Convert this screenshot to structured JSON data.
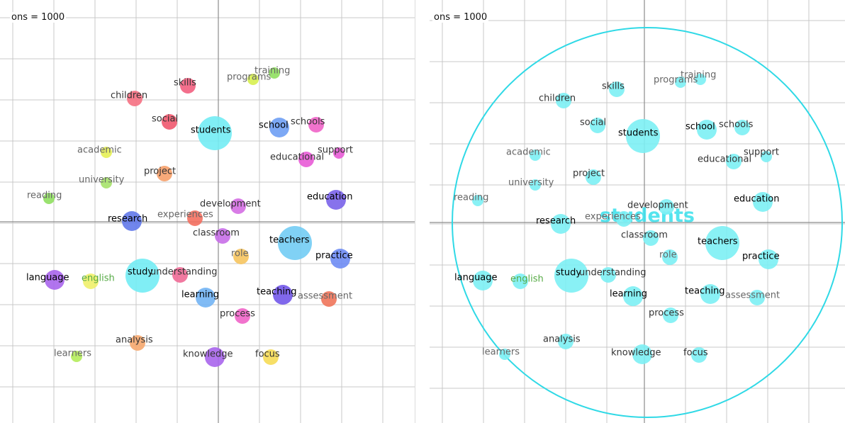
{
  "panels": [
    {
      "id": "left",
      "header": "ons = 1000",
      "palette_mode": "colored",
      "words": [
        {
          "label": "training",
          "color": "#8fdf5f",
          "size": "s",
          "text": "gray"
        },
        {
          "label": "programs",
          "color": "#d7ef4f",
          "size": "s",
          "text": "gray"
        },
        {
          "label": "skills",
          "color": "#f25f7f",
          "size": "m",
          "text": "dark"
        },
        {
          "label": "children",
          "color": "#f57082",
          "size": "m",
          "text": "dark"
        },
        {
          "label": "social",
          "color": "#f0586e",
          "size": "m",
          "text": "dark"
        },
        {
          "label": "students",
          "color": "#72ecf4",
          "size": "xl",
          "text": "black"
        },
        {
          "label": "school",
          "color": "#6e9ef4",
          "size": "l",
          "text": "black"
        },
        {
          "label": "schools",
          "color": "#f064c8",
          "size": "m",
          "text": "dark"
        },
        {
          "label": "academic",
          "color": "#e6ef55",
          "size": "s",
          "text": "gray"
        },
        {
          "label": "educational",
          "color": "#e85bd6",
          "size": "m",
          "text": "dark"
        },
        {
          "label": "support",
          "color": "#e85bd6",
          "size": "s",
          "text": "dark"
        },
        {
          "label": "project",
          "color": "#f6a06a",
          "size": "m",
          "text": "dark"
        },
        {
          "label": "university",
          "color": "#a6e26a",
          "size": "s",
          "text": "gray"
        },
        {
          "label": "reading",
          "color": "#8fdf5f",
          "size": "s",
          "text": "gray"
        },
        {
          "label": "development",
          "color": "#d46ee3",
          "size": "m",
          "text": "dark"
        },
        {
          "label": "education",
          "color": "#7a63ea",
          "size": "l",
          "text": "black"
        },
        {
          "label": "research",
          "color": "#6279ea",
          "size": "l",
          "text": "black"
        },
        {
          "label": "experiences",
          "color": "#f47060",
          "size": "m",
          "text": "gray"
        },
        {
          "label": "classroom",
          "color": "#c86ee8",
          "size": "m",
          "text": "dark"
        },
        {
          "label": "teachers",
          "color": "#72ccf4",
          "size": "xl",
          "text": "black"
        },
        {
          "label": "role",
          "color": "#f6c45e",
          "size": "m",
          "text": "gray"
        },
        {
          "label": "practice",
          "color": "#6e8cf4",
          "size": "l",
          "text": "black"
        },
        {
          "label": "study",
          "color": "#72ecf4",
          "size": "xl",
          "text": "black"
        },
        {
          "label": "understanding",
          "color": "#f06a96",
          "size": "m",
          "text": "dark"
        },
        {
          "label": "language",
          "color": "#a865ec",
          "size": "l",
          "text": "black"
        },
        {
          "label": "english",
          "color": "#f0f06a",
          "size": "m",
          "text": "green"
        },
        {
          "label": "learning",
          "color": "#72b4f4",
          "size": "l",
          "text": "black"
        },
        {
          "label": "teaching",
          "color": "#7258ea",
          "size": "l",
          "text": "black"
        },
        {
          "label": "assessment",
          "color": "#f0745a",
          "size": "m",
          "text": "gray"
        },
        {
          "label": "process",
          "color": "#f064c8",
          "size": "m",
          "text": "dark"
        },
        {
          "label": "analysis",
          "color": "#f6a76e",
          "size": "m",
          "text": "dark"
        },
        {
          "label": "learners",
          "color": "#b4ec5a",
          "size": "s",
          "text": "gray"
        },
        {
          "label": "knowledge",
          "color": "#a865ec",
          "size": "l",
          "text": "dark"
        },
        {
          "label": "focus",
          "color": "#f6dc55",
          "size": "m",
          "text": "dark"
        }
      ]
    },
    {
      "id": "right",
      "header": "ons = 1000",
      "palette_mode": "cyan",
      "highlight": {
        "label": "students",
        "color": "#38e0ec"
      },
      "words": [
        {
          "label": "training",
          "color": "#7cf0f4",
          "size": "s",
          "text": "gray"
        },
        {
          "label": "programs",
          "color": "#7cf0f4",
          "size": "s",
          "text": "gray"
        },
        {
          "label": "skills",
          "color": "#7cf0f4",
          "size": "m",
          "text": "dark"
        },
        {
          "label": "children",
          "color": "#7cf0f4",
          "size": "m",
          "text": "dark"
        },
        {
          "label": "social",
          "color": "#7cf0f4",
          "size": "m",
          "text": "dark"
        },
        {
          "label": "students",
          "color": "#7cf0f4",
          "size": "xl",
          "text": "black"
        },
        {
          "label": "school",
          "color": "#7cf0f4",
          "size": "l",
          "text": "black"
        },
        {
          "label": "schools",
          "color": "#7cf0f4",
          "size": "m",
          "text": "dark"
        },
        {
          "label": "academic",
          "color": "#7cf0f4",
          "size": "s",
          "text": "gray"
        },
        {
          "label": "educational",
          "color": "#7cf0f4",
          "size": "m",
          "text": "dark"
        },
        {
          "label": "support",
          "color": "#7cf0f4",
          "size": "s",
          "text": "dark"
        },
        {
          "label": "project",
          "color": "#7cf0f4",
          "size": "m",
          "text": "dark"
        },
        {
          "label": "university",
          "color": "#7cf0f4",
          "size": "s",
          "text": "gray"
        },
        {
          "label": "reading",
          "color": "#7cf0f4",
          "size": "s",
          "text": "gray"
        },
        {
          "label": "development",
          "color": "#7cf0f4",
          "size": "m",
          "text": "dark"
        },
        {
          "label": "education",
          "color": "#7cf0f4",
          "size": "l",
          "text": "black"
        },
        {
          "label": "research",
          "color": "#7cf0f4",
          "size": "l",
          "text": "black"
        },
        {
          "label": "experiences",
          "color": "#7cf0f4",
          "size": "m",
          "text": "gray"
        },
        {
          "label": "classroom",
          "color": "#7cf0f4",
          "size": "m",
          "text": "dark"
        },
        {
          "label": "teachers",
          "color": "#7cf0f4",
          "size": "xl",
          "text": "black"
        },
        {
          "label": "role",
          "color": "#7cf0f4",
          "size": "m",
          "text": "gray"
        },
        {
          "label": "practice",
          "color": "#7cf0f4",
          "size": "l",
          "text": "black"
        },
        {
          "label": "study",
          "color": "#7cf0f4",
          "size": "xl",
          "text": "black"
        },
        {
          "label": "understanding",
          "color": "#7cf0f4",
          "size": "m",
          "text": "dark"
        },
        {
          "label": "language",
          "color": "#7cf0f4",
          "size": "l",
          "text": "black"
        },
        {
          "label": "english",
          "color": "#7cf0f4",
          "size": "m",
          "text": "green"
        },
        {
          "label": "learning",
          "color": "#7cf0f4",
          "size": "l",
          "text": "black"
        },
        {
          "label": "teaching",
          "color": "#7cf0f4",
          "size": "l",
          "text": "black"
        },
        {
          "label": "assessment",
          "color": "#7cf0f4",
          "size": "m",
          "text": "gray"
        },
        {
          "label": "process",
          "color": "#7cf0f4",
          "size": "m",
          "text": "dark"
        },
        {
          "label": "analysis",
          "color": "#7cf0f4",
          "size": "m",
          "text": "dark"
        },
        {
          "label": "learners",
          "color": "#7cf0f4",
          "size": "s",
          "text": "gray"
        },
        {
          "label": "knowledge",
          "color": "#7cf0f4",
          "size": "l",
          "text": "dark"
        },
        {
          "label": "focus",
          "color": "#7cf0f4",
          "size": "m",
          "text": "dark"
        }
      ]
    }
  ],
  "colors": {
    "grid": "#c8c8c8",
    "axis": "#8c8c8c",
    "text_black": "#000000",
    "text_dark": "#333333",
    "text_gray": "#666666",
    "text_green": "#55aa44"
  }
}
